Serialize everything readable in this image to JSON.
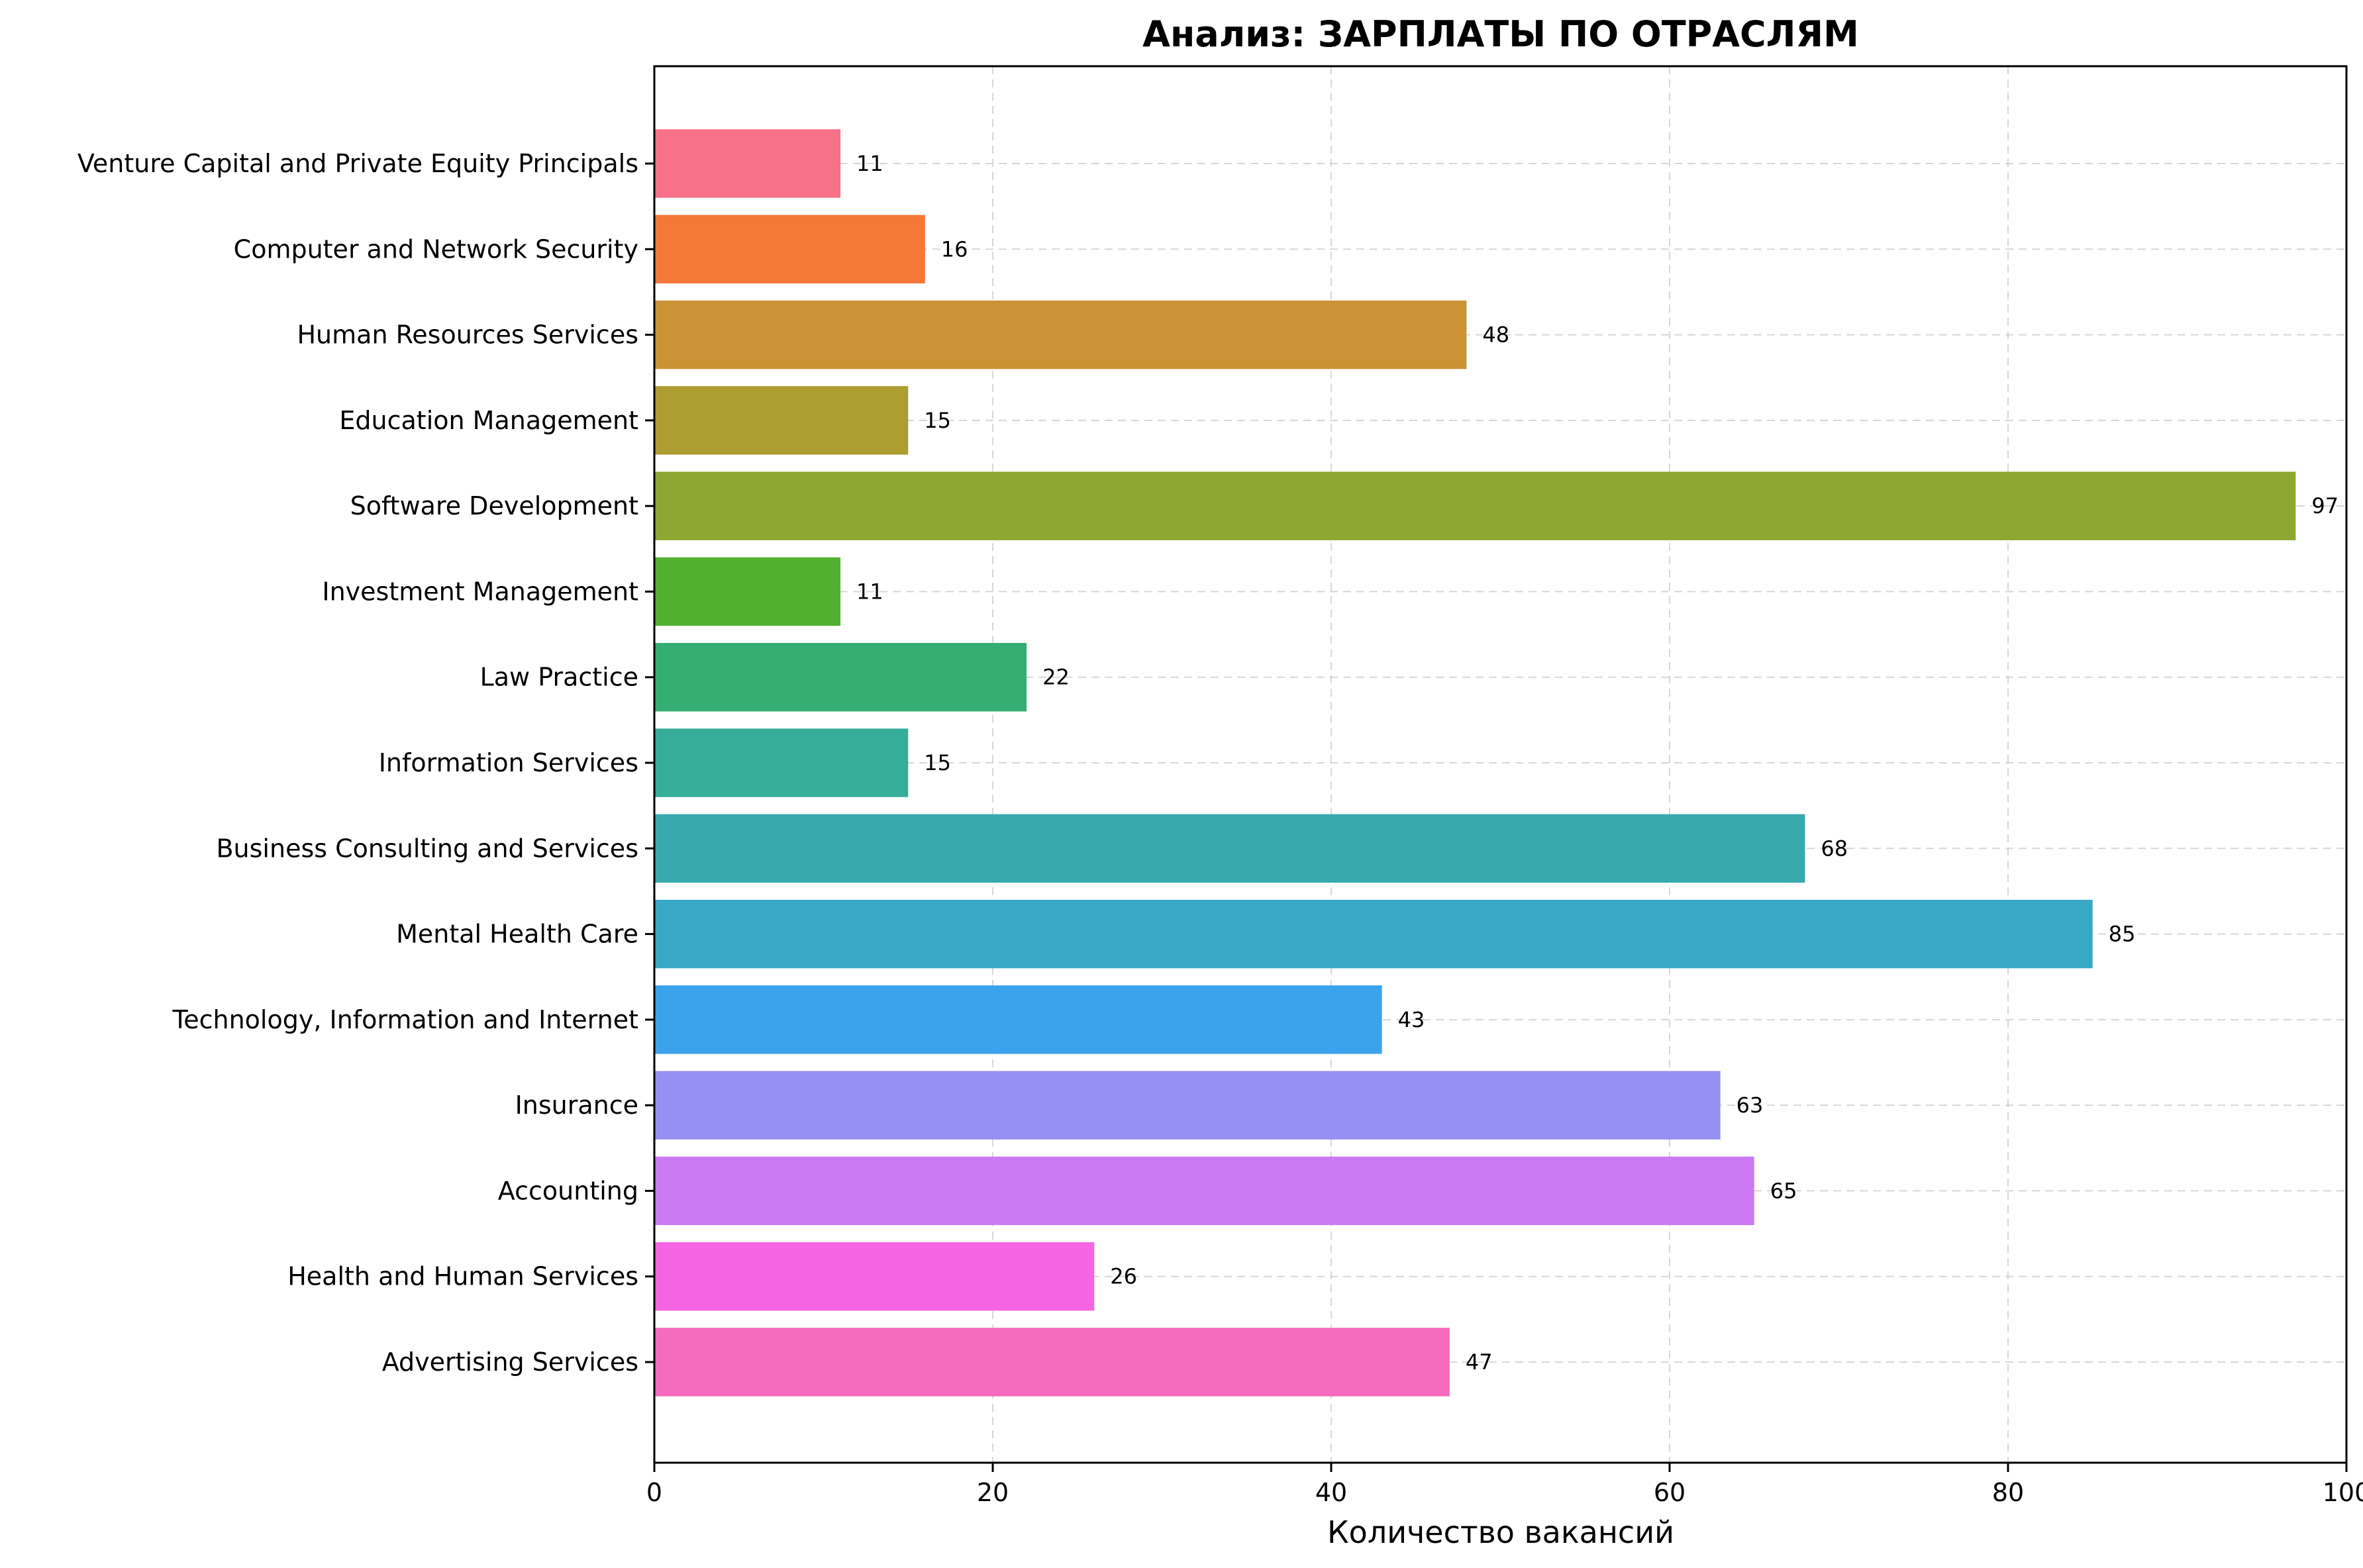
{
  "chart_data": {
    "type": "bar",
    "orientation": "horizontal",
    "title": "Анализ: ЗАРПЛАТЫ ПО ОТРАСЛЯМ",
    "xlabel": "Количество вакансий",
    "ylabel": "",
    "xlim": [
      0,
      100
    ],
    "xticks": [
      0,
      20,
      40,
      60,
      80,
      100
    ],
    "grid": true,
    "categories": [
      "Venture Capital and Private Equity Principals",
      "Computer and Network Security",
      "Human Resources Services",
      "Education Management",
      "Software Development",
      "Investment Management",
      "Law Practice",
      "Information Services",
      "Business Consulting and Services",
      "Mental Health Care",
      "Technology, Information and Internet",
      "Insurance",
      "Accounting",
      "Health and Human Services",
      "Advertising Services"
    ],
    "values": [
      11,
      16,
      48,
      15,
      97,
      11,
      22,
      15,
      68,
      85,
      43,
      63,
      65,
      26,
      47
    ],
    "colors": [
      "#f77189",
      "#f47838",
      "#cc9236",
      "#ae9d31",
      "#8ea732",
      "#50b131",
      "#35ae74",
      "#36ad98",
      "#38aaae",
      "#39a8c7",
      "#3ba3ec",
      "#9790f3",
      "#cc79f4",
      "#f564e3",
      "#f56bbd"
    ]
  }
}
